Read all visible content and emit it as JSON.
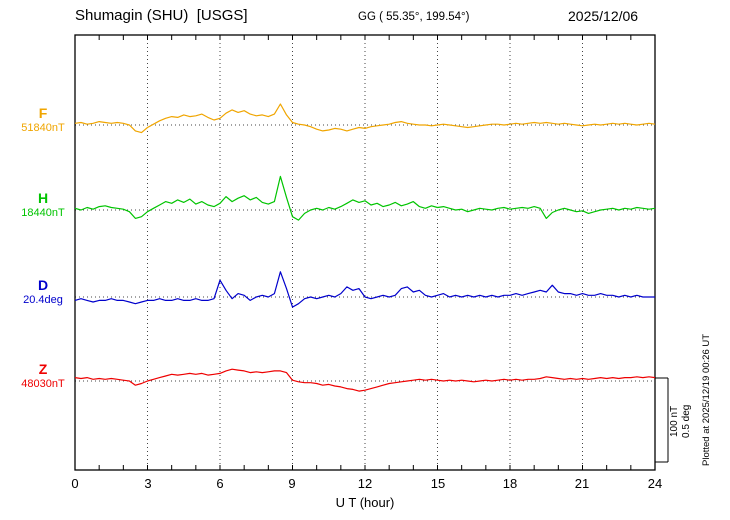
{
  "header": {
    "title": "Shumagin (SHU)  [USGS]",
    "coords": "GG ( 55.35°, 199.54°)",
    "date": "2025/12/06"
  },
  "axis": {
    "xlabel": "U T (hour)",
    "xticks": [
      0,
      3,
      6,
      9,
      12,
      15,
      18,
      21,
      24
    ],
    "x_minor_step_hours": 1
  },
  "scalebar": {
    "nt_label": "100 nT",
    "deg_label": "0.5 deg"
  },
  "plotted_at": "Plotted at 2025/12/19 00:26 UT",
  "chart_data": {
    "type": "line",
    "title": "Shumagin (SHU) [USGS] magnetogram",
    "date": "2025/12/06",
    "xlabel": "U T (hour)",
    "x_range_hours": [
      0,
      24
    ],
    "x_step_hours": 0.25,
    "grid": {
      "vertical_dotted_every_hours": 3,
      "dotted_baseline_per_trace": true
    },
    "legend_position": "left trace labels",
    "scale_reference": {
      "nT": 100,
      "deg": 0.5,
      "note": "scale bracket at lower right: 100 nT and 0.5 deg have equal plotted length"
    },
    "series": [
      {
        "name": "F",
        "color": "#f0a500",
        "units": "nT",
        "baseline_value": 51840,
        "baseline_label": "51840nT",
        "offsets": [
          2,
          3,
          1,
          2,
          4,
          3,
          2,
          3,
          2,
          0,
          -7,
          -9,
          -3,
          1,
          5,
          8,
          10,
          9,
          12,
          10,
          11,
          13,
          9,
          6,
          8,
          14,
          18,
          15,
          17,
          13,
          11,
          12,
          10,
          13,
          25,
          12,
          3,
          1,
          0,
          -2,
          -5,
          -7,
          -6,
          -4,
          -5,
          -7,
          -5,
          -3,
          -4,
          -2,
          -1,
          0,
          1,
          3,
          4,
          2,
          1,
          0,
          0,
          -1,
          0,
          1,
          0,
          -1,
          -2,
          -3,
          -2,
          -1,
          0,
          1,
          1,
          0,
          1,
          2,
          1,
          2,
          3,
          2,
          3,
          2,
          1,
          2,
          1,
          0,
          -1,
          0,
          1,
          0,
          1,
          2,
          1,
          2,
          1,
          0,
          1,
          2,
          1
        ]
      },
      {
        "name": "H",
        "color": "#00c400",
        "units": "nT",
        "baseline_value": 18440,
        "baseline_label": "18440nT",
        "offsets": [
          2,
          0,
          3,
          1,
          4,
          5,
          3,
          2,
          1,
          -2,
          -10,
          -8,
          -2,
          2,
          6,
          10,
          8,
          12,
          9,
          13,
          7,
          10,
          6,
          4,
          8,
          16,
          10,
          14,
          17,
          12,
          15,
          9,
          7,
          10,
          40,
          15,
          -8,
          -12,
          -4,
          0,
          2,
          0,
          3,
          1,
          4,
          8,
          12,
          9,
          11,
          6,
          8,
          4,
          6,
          9,
          5,
          7,
          10,
          4,
          2,
          5,
          3,
          4,
          2,
          0,
          1,
          -2,
          0,
          2,
          1,
          0,
          2,
          3,
          1,
          2,
          3,
          2,
          4,
          2,
          -10,
          -3,
          0,
          2,
          0,
          -2,
          -1,
          -4,
          -2,
          0,
          1,
          2,
          0,
          2,
          1,
          3,
          2,
          1,
          2
        ]
      },
      {
        "name": "D",
        "color": "#0000cc",
        "units": "deg",
        "baseline_value": 20.4,
        "baseline_label": "20.4deg",
        "offsets": [
          -0.02,
          -0.01,
          -0.02,
          -0.03,
          -0.02,
          -0.02,
          -0.01,
          -0.02,
          -0.02,
          -0.03,
          -0.04,
          -0.03,
          -0.02,
          -0.02,
          -0.01,
          -0.02,
          -0.02,
          -0.01,
          -0.02,
          -0.02,
          -0.01,
          -0.02,
          -0.02,
          -0.01,
          0.1,
          0.04,
          -0.01,
          0.02,
          0.01,
          -0.02,
          0.0,
          0.01,
          0.0,
          0.02,
          0.15,
          0.05,
          -0.06,
          -0.04,
          -0.01,
          0.0,
          -0.01,
          0.0,
          0.01,
          0.0,
          0.02,
          0.06,
          0.04,
          0.05,
          0.0,
          -0.01,
          0.0,
          0.01,
          0.0,
          0.01,
          0.05,
          0.06,
          0.03,
          0.04,
          0.01,
          0.0,
          0.01,
          0.02,
          0.0,
          0.01,
          0.0,
          0.01,
          0.0,
          0.01,
          0.0,
          0.01,
          0.0,
          0.01,
          0.01,
          0.02,
          0.01,
          0.02,
          0.03,
          0.04,
          0.03,
          0.07,
          0.03,
          0.02,
          0.02,
          0.01,
          0.02,
          0.01,
          0.01,
          0.02,
          0.01,
          0.01,
          0.0,
          0.01,
          0.0,
          0.01,
          0.0,
          0.0,
          0.0
        ]
      },
      {
        "name": "Z",
        "color": "#ee0000",
        "units": "nT",
        "baseline_value": 48030,
        "baseline_label": "48030nT",
        "offsets": [
          4,
          3,
          4,
          2,
          3,
          2,
          3,
          2,
          1,
          0,
          -5,
          -3,
          0,
          2,
          4,
          6,
          8,
          7,
          8,
          9,
          8,
          9,
          7,
          8,
          9,
          12,
          14,
          13,
          12,
          10,
          11,
          10,
          11,
          12,
          12,
          10,
          1,
          -1,
          -2,
          -2,
          -3,
          -5,
          -4,
          -6,
          -7,
          -9,
          -10,
          -12,
          -11,
          -9,
          -7,
          -5,
          -3,
          -2,
          -1,
          0,
          1,
          2,
          1,
          2,
          1,
          0,
          1,
          0,
          1,
          0,
          -1,
          0,
          1,
          0,
          1,
          2,
          1,
          2,
          1,
          2,
          2,
          3,
          5,
          4,
          3,
          2,
          3,
          2,
          3,
          2,
          3,
          4,
          3,
          4,
          3,
          4,
          4,
          5,
          4,
          5,
          4
        ]
      }
    ]
  }
}
